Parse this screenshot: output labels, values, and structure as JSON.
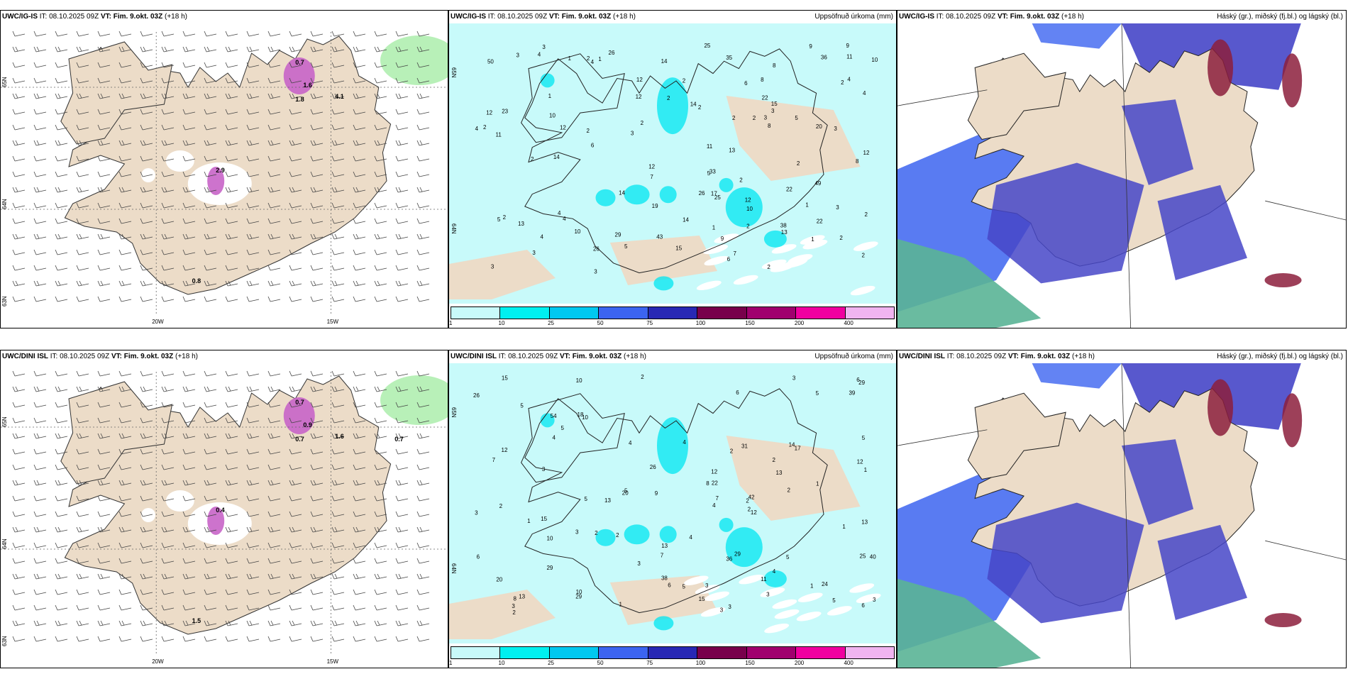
{
  "panels": [
    {
      "id": "p1",
      "model": "UWC/IG-IS",
      "it_label": "IT:",
      "it_value": "08.10.2025 09Z",
      "vt_label": "VT:",
      "vt_value": "Fim. 9.okt. 03Z",
      "lead": "(+18 h)",
      "right_title": "",
      "type": "wind",
      "ticks": {
        "lon_left": "20W",
        "lon_right": "15W",
        "lat_top": "65N",
        "lat_mid": "64N",
        "lat_bottom": "63N"
      },
      "numbers": [
        "0.7",
        "1.6",
        "1.8",
        "4.1",
        "2.9",
        "0.8"
      ]
    },
    {
      "id": "p2",
      "model": "UWC/IG-IS",
      "it_label": "IT:",
      "it_value": "08.10.2025 09Z",
      "vt_label": "VT:",
      "vt_value": "Fim. 9.okt. 03Z",
      "lead": "(+18 h)",
      "right_title": "Uppsöfnuð úrkoma (mm)",
      "type": "precip",
      "ticks": {
        "lat_top": "65N",
        "lat_mid": "64N"
      },
      "numbers": [
        "7",
        "4",
        "4",
        "10",
        "5",
        "9",
        "8",
        "6",
        "7",
        "10",
        "13",
        "12",
        "12",
        "17",
        "8",
        "9",
        "11",
        "36",
        "22",
        "20",
        "38",
        "25",
        "26",
        "13",
        "13",
        "15",
        "14",
        "12",
        "15",
        "12",
        "10",
        "9",
        "8",
        "29",
        "26",
        "43",
        "25",
        "23",
        "12",
        "12",
        "14",
        "11",
        "10",
        "22",
        "35",
        "49",
        "26",
        "19",
        "33",
        "11",
        "14",
        "14",
        "2",
        "22",
        "50",
        "2",
        "1",
        "2",
        "3",
        "5",
        "4",
        "6",
        "3",
        "2",
        "2",
        "3",
        "4",
        "1",
        "2",
        "3",
        "3",
        "2",
        "4",
        "2",
        "5",
        "1",
        "2",
        "4",
        "2",
        "2",
        "2",
        "3",
        "6",
        "14",
        "12",
        "4",
        "2",
        "2",
        "3",
        "1",
        "4",
        "8",
        "5",
        "3",
        "2",
        "2",
        "3",
        "1",
        "2",
        "3",
        "2",
        "2",
        "1"
      ],
      "colorbar": {
        "colors": [
          "#c8fafa",
          "#00f0f0",
          "#00c8f0",
          "#3c64f0",
          "#2828b4",
          "#78004b",
          "#a0006e",
          "#f000a0",
          "#f0b4f0"
        ],
        "labels": [
          "1",
          "10",
          "25",
          "50",
          "75",
          "100",
          "150",
          "200",
          "400"
        ]
      }
    },
    {
      "id": "p3",
      "model": "UWC/IG-IS",
      "it_label": "IT:",
      "it_value": "08.10.2025 09Z",
      "vt_label": "VT:",
      "vt_value": "Fim. 9.okt. 03Z",
      "lead": "(+18 h)",
      "right_title": "Háský (gr.), miðský (fj.bl.) og lágský (bl.)",
      "type": "cloud"
    },
    {
      "id": "p4",
      "model": "UWC/DINI ISL",
      "it_label": "IT:",
      "it_value": "08.10.2025 09Z",
      "vt_label": "VT:",
      "vt_value": "Fim. 9.okt. 03Z",
      "lead": "(+18 h)",
      "right_title": "",
      "type": "wind",
      "ticks": {
        "lon_left": "20W",
        "lon_right": "15W",
        "lat_top": "65N",
        "lat_mid": "64N",
        "lat_bottom": "63N"
      },
      "numbers": [
        "0.7",
        "0.9",
        "0.7",
        "1.6",
        "0.4",
        "1.5",
        "0.7"
      ]
    },
    {
      "id": "p5",
      "model": "UWC/DINI ISL",
      "it_label": "IT:",
      "it_value": "08.10.2025 09Z",
      "vt_label": "VT:",
      "vt_value": "Fim. 9.okt. 03Z",
      "lead": "(+18 h)",
      "right_title": "Uppsöfnuð úrkoma (mm)",
      "type": "precip",
      "ticks": {
        "lat_top": "65N",
        "lat_mid": "64N"
      },
      "numbers": [
        "1",
        "3",
        "10",
        "11",
        "10",
        "5",
        "5",
        "5",
        "2",
        "4",
        "5",
        "6",
        "5",
        "7",
        "6",
        "8",
        "12",
        "29",
        "13",
        "26",
        "36",
        "29",
        "12",
        "8",
        "17",
        "15",
        "6",
        "10",
        "15",
        "12",
        "9",
        "3",
        "13",
        "39",
        "29",
        "42",
        "25",
        "20",
        "31",
        "24",
        "22",
        "13",
        "40",
        "13",
        "10",
        "29",
        "13",
        "15",
        "54",
        "38",
        "6",
        "12",
        "6",
        "5",
        "3",
        "14",
        "20",
        "26",
        "18",
        "2",
        "1",
        "3",
        "4",
        "2",
        "5",
        "3",
        "7",
        "1",
        "2",
        "2",
        "3",
        "4",
        "5",
        "3",
        "2",
        "2",
        "4",
        "7",
        "2",
        "3",
        "3",
        "3",
        "4",
        "2",
        "2",
        "1",
        "1",
        "3",
        "4",
        "5",
        "1"
      ],
      "colorbar": {
        "colors": [
          "#c8fafa",
          "#00f0f0",
          "#00c8f0",
          "#3c64f0",
          "#2828b4",
          "#78004b",
          "#a0006e",
          "#f000a0",
          "#f0b4f0"
        ],
        "labels": [
          "1",
          "10",
          "25",
          "50",
          "75",
          "100",
          "150",
          "200",
          "400"
        ]
      }
    },
    {
      "id": "p6",
      "model": "UWC/DINI ISL",
      "it_label": "IT:",
      "it_value": "08.10.2025 09Z",
      "vt_label": "VT:",
      "vt_value": "Fim. 9.okt. 03Z",
      "lead": "(+18 h)",
      "right_title": "Háský (gr.), miðský (fj.bl.) og lágský (bl.)",
      "type": "cloud"
    }
  ],
  "colors": {
    "land": "#ecdcc8",
    "precip_light": "#c8fafa",
    "precip_mid": "#00e6f0",
    "high_cloud": "#5ab496",
    "mid_cloud": "#4646c8",
    "low_cloud": "#3c64f0",
    "mag": "#c864c8"
  }
}
